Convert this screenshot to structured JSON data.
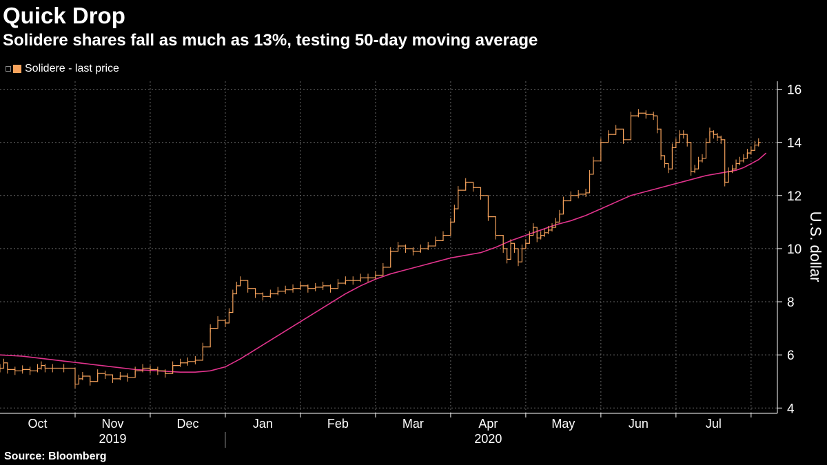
{
  "header": {
    "title": "Quick Drop",
    "subtitle": "Solidere shares fall as much as 13%, testing 50-day moving average"
  },
  "legend": {
    "label": "Solidere - last price"
  },
  "footer": {
    "source": "Source: Bloomberg"
  },
  "colors": {
    "background": "#000000",
    "price": "#f7a35c",
    "moving_average": "#e0338c",
    "grid": "#666666",
    "axis": "#ffffff"
  },
  "chart_data": {
    "type": "line",
    "title": "Quick Drop",
    "subtitle": "Solidere shares fall as much as 13%, testing 50-day moving average",
    "ylabel": "U.S. dollar",
    "ylim": [
      3.8,
      16.3
    ],
    "y_ticks": [
      4,
      6,
      8,
      10,
      12,
      14,
      16
    ],
    "y_axis_side": "right",
    "grid": true,
    "xlim": [
      0,
      10.35
    ],
    "month_labels": [
      {
        "label": "Oct",
        "x": 0.5
      },
      {
        "label": "Nov",
        "x": 1.5
      },
      {
        "label": "Dec",
        "x": 2.5
      },
      {
        "label": "Jan",
        "x": 3.5
      },
      {
        "label": "Feb",
        "x": 4.5
      },
      {
        "label": "Mar",
        "x": 5.5
      },
      {
        "label": "Apr",
        "x": 6.5
      },
      {
        "label": "May",
        "x": 7.5
      },
      {
        "label": "Jun",
        "x": 8.5
      },
      {
        "label": "Jul",
        "x": 9.5
      }
    ],
    "month_boundaries": [
      1,
      2,
      3,
      4,
      5,
      6,
      7,
      8,
      9,
      10
    ],
    "year_labels": [
      {
        "label": "2019",
        "x": 1.5
      },
      {
        "label": "2020",
        "x": 6.5
      }
    ],
    "year_boundary": 3,
    "series": [
      {
        "name": "Solidere - last price",
        "style": "step",
        "x": [
          0,
          0.05,
          0.1,
          0.2,
          0.3,
          0.4,
          0.5,
          0.55,
          0.6,
          0.7,
          0.85,
          1.0,
          1.05,
          1.1,
          1.2,
          1.3,
          1.4,
          1.5,
          1.6,
          1.7,
          1.8,
          1.9,
          2.0,
          2.1,
          2.2,
          2.3,
          2.4,
          2.5,
          2.6,
          2.7,
          2.8,
          2.9,
          3.0,
          3.05,
          3.1,
          3.15,
          3.2,
          3.3,
          3.4,
          3.5,
          3.6,
          3.7,
          3.8,
          3.9,
          4.0,
          4.1,
          4.2,
          4.3,
          4.4,
          4.5,
          4.6,
          4.7,
          4.8,
          4.9,
          5.0,
          5.1,
          5.2,
          5.3,
          5.4,
          5.5,
          5.6,
          5.7,
          5.8,
          5.9,
          6.0,
          6.05,
          6.1,
          6.2,
          6.3,
          6.4,
          6.5,
          6.6,
          6.7,
          6.75,
          6.8,
          6.85,
          6.9,
          6.95,
          7.0,
          7.05,
          7.1,
          7.15,
          7.2,
          7.25,
          7.3,
          7.35,
          7.4,
          7.45,
          7.5,
          7.6,
          7.7,
          7.8,
          7.85,
          7.9,
          8.0,
          8.1,
          8.2,
          8.3,
          8.4,
          8.5,
          8.6,
          8.7,
          8.75,
          8.8,
          8.85,
          8.9,
          8.95,
          9.0,
          9.05,
          9.1,
          9.15,
          9.2,
          9.25,
          9.3,
          9.35,
          9.4,
          9.45,
          9.5,
          9.55,
          9.6,
          9.65,
          9.7,
          9.75,
          9.8,
          9.85,
          9.9,
          9.95,
          10.0,
          10.05,
          10.1
        ],
        "values": [
          5.5,
          5.7,
          5.45,
          5.4,
          5.45,
          5.4,
          5.5,
          5.6,
          5.5,
          5.5,
          5.5,
          4.9,
          5.1,
          5.2,
          5.0,
          5.3,
          5.25,
          5.1,
          5.2,
          5.15,
          5.4,
          5.5,
          5.45,
          5.4,
          5.3,
          5.6,
          5.7,
          5.75,
          5.8,
          6.3,
          7.0,
          7.3,
          7.2,
          7.6,
          8.3,
          8.6,
          8.8,
          8.5,
          8.3,
          8.2,
          8.3,
          8.4,
          8.45,
          8.5,
          8.6,
          8.5,
          8.55,
          8.6,
          8.5,
          8.7,
          8.8,
          8.8,
          8.9,
          8.9,
          9.0,
          9.3,
          9.9,
          10.1,
          10.0,
          9.9,
          10.0,
          10.1,
          10.3,
          10.5,
          11.0,
          11.5,
          12.2,
          12.5,
          12.3,
          12.0,
          11.2,
          10.5,
          10.0,
          9.6,
          10.2,
          10.0,
          9.5,
          10.0,
          10.2,
          10.5,
          10.8,
          10.4,
          10.5,
          10.6,
          10.7,
          10.8,
          11.0,
          11.3,
          11.8,
          12.0,
          12.05,
          12.1,
          12.8,
          13.3,
          14.0,
          14.3,
          14.5,
          14.1,
          15.0,
          15.1,
          15.05,
          15.0,
          14.5,
          13.5,
          13.2,
          13.0,
          13.8,
          14.0,
          14.3,
          14.3,
          14.0,
          12.9,
          13.0,
          13.3,
          13.4,
          14.0,
          14.4,
          14.3,
          14.2,
          14.1,
          12.5,
          12.9,
          13.0,
          13.2,
          13.3,
          13.4,
          13.6,
          13.7,
          13.9,
          14.0
        ]
      },
      {
        "name": "50-day moving average",
        "style": "line",
        "x": [
          0,
          0.3,
          0.6,
          0.9,
          1.2,
          1.5,
          1.8,
          2.1,
          2.4,
          2.6,
          2.8,
          3.0,
          3.2,
          3.4,
          3.6,
          3.8,
          4.0,
          4.2,
          4.4,
          4.6,
          4.8,
          5.0,
          5.2,
          5.4,
          5.6,
          5.8,
          6.0,
          6.2,
          6.4,
          6.6,
          6.8,
          7.0,
          7.2,
          7.4,
          7.6,
          7.8,
          8.0,
          8.2,
          8.4,
          8.6,
          8.8,
          9.0,
          9.2,
          9.4,
          9.6,
          9.8,
          9.9,
          10.0,
          10.1,
          10.2
        ],
        "values": [
          6.0,
          5.95,
          5.85,
          5.75,
          5.65,
          5.55,
          5.45,
          5.4,
          5.35,
          5.35,
          5.4,
          5.55,
          5.85,
          6.2,
          6.55,
          6.9,
          7.25,
          7.6,
          7.95,
          8.3,
          8.6,
          8.85,
          9.05,
          9.2,
          9.35,
          9.5,
          9.65,
          9.75,
          9.85,
          10.05,
          10.3,
          10.5,
          10.7,
          10.9,
          11.05,
          11.25,
          11.5,
          11.75,
          12.0,
          12.15,
          12.3,
          12.45,
          12.6,
          12.75,
          12.85,
          12.95,
          13.05,
          13.2,
          13.35,
          13.6
        ]
      }
    ]
  }
}
